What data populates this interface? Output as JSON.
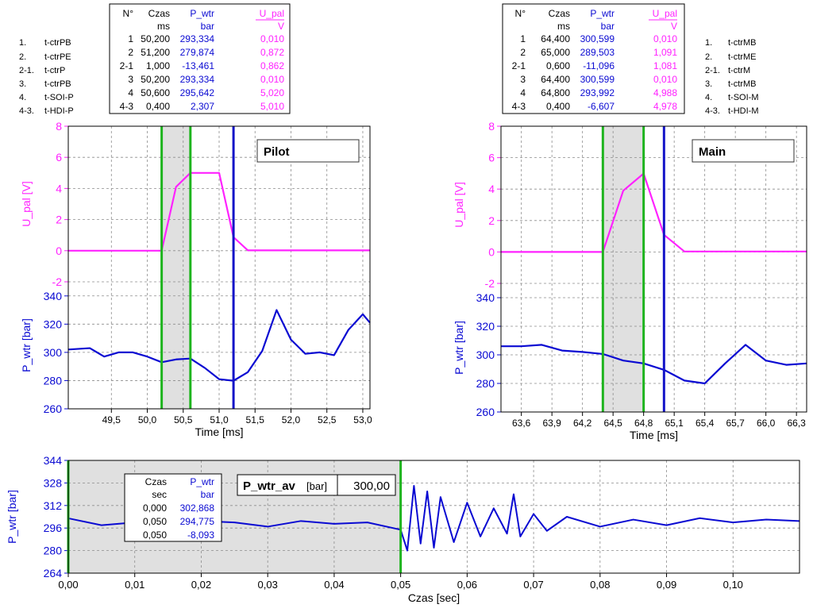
{
  "colors": {
    "pressure": "#0a0ad2",
    "voltage": "#ff22ff",
    "cursor_green": "#1eb41e",
    "cursor_blue": "#1414c8",
    "shade": "#e0e0e0",
    "grid": "#8c8c8c"
  },
  "pilot": {
    "legend": [
      {
        "no": "1.",
        "name": "t-ctrPB"
      },
      {
        "no": "2.",
        "name": "t-ctrPE"
      },
      {
        "no": "2-1.",
        "name": "t-ctrP"
      },
      {
        "no": "3.",
        "name": "t-ctrPB"
      },
      {
        "no": "4.",
        "name": "t-SOI-P"
      },
      {
        "no": "4-3.",
        "name": "t-HDI-P"
      }
    ],
    "table": {
      "headers": [
        "N°",
        "Czas",
        "P_wtr",
        "U_pal"
      ],
      "units": [
        "",
        "ms",
        "bar",
        "V"
      ],
      "rows": [
        [
          "1",
          "50,200",
          "293,334",
          "0,010"
        ],
        [
          "2",
          "51,200",
          "279,874",
          "0,872"
        ],
        [
          "2-1",
          "1,000",
          "-13,461",
          "0,862"
        ],
        [
          "3",
          "50,200",
          "293,334",
          "0,010"
        ],
        [
          "4",
          "50,600",
          "295,642",
          "5,020"
        ],
        [
          "4-3",
          "0,400",
          "2,307",
          "5,010"
        ]
      ]
    },
    "label": "Pilot"
  },
  "main": {
    "legend": [
      {
        "no": "1.",
        "name": "t-ctrMB"
      },
      {
        "no": "2.",
        "name": "t-ctrME"
      },
      {
        "no": "2-1.",
        "name": "t-ctrM"
      },
      {
        "no": "3.",
        "name": "t-ctrMB"
      },
      {
        "no": "4.",
        "name": "t-SOI-M"
      },
      {
        "no": "4-3.",
        "name": "t-HDI-M"
      }
    ],
    "table": {
      "headers": [
        "N°",
        "Czas",
        "P_wtr",
        "U_pal"
      ],
      "units": [
        "",
        "ms",
        "bar",
        "V"
      ],
      "rows": [
        [
          "1",
          "64,400",
          "300,599",
          "0,010"
        ],
        [
          "2",
          "65,000",
          "289,503",
          "1,091"
        ],
        [
          "2-1",
          "0,600",
          "-11,096",
          "1,081"
        ],
        [
          "3",
          "64,400",
          "300,599",
          "0,010"
        ],
        [
          "4",
          "64,800",
          "293,992",
          "4,988"
        ],
        [
          "4-3",
          "0,400",
          "-6,607",
          "4,978"
        ]
      ]
    },
    "label": "Main"
  },
  "bottom": {
    "avg_label": "P_wtr_av",
    "avg_unit": "[bar]",
    "avg_value": "300,00",
    "table": {
      "headers": [
        "Czas",
        "P_wtr"
      ],
      "units": [
        "sec",
        "bar"
      ],
      "rows": [
        [
          "0,000",
          "302,868"
        ],
        [
          "0,050",
          "294,775"
        ],
        [
          "0,050",
          "-8,093"
        ]
      ]
    }
  },
  "chart_data": [
    {
      "id": "pilot",
      "type": "line",
      "xlabel": "Time [ms]",
      "x_ticks": [
        "49,5",
        "50,0",
        "50,5",
        "51,0",
        "51,5",
        "52,0",
        "52,5",
        "53,0"
      ],
      "xlim": [
        48.9,
        53.1
      ],
      "upper": {
        "ylabel": "U_pal [V]",
        "ylim": [
          -2,
          8
        ],
        "y_ticks": [
          "-2",
          "0",
          "2",
          "4",
          "6",
          "8"
        ],
        "series": [
          {
            "x": [
              48.9,
              50.2,
              50.4,
              50.6,
              50.8,
              51.0,
              51.2,
              51.4,
              53.1
            ],
            "y": [
              0,
              0,
              4.1,
              5.0,
              5.0,
              5.0,
              0.87,
              0.02,
              0.02
            ]
          }
        ]
      },
      "lower": {
        "ylabel": "P_wtr [bar]",
        "ylim": [
          260,
          350
        ],
        "y_ticks": [
          "260",
          "280",
          "300",
          "320",
          "340"
        ],
        "series": [
          {
            "x": [
              48.9,
              49.2,
              49.4,
              49.6,
              49.8,
              50.0,
              50.2,
              50.4,
              50.6,
              50.8,
              51.0,
              51.2,
              51.4,
              51.6,
              51.8,
              52.0,
              52.2,
              52.4,
              52.6,
              52.8,
              53.0,
              53.1
            ],
            "y": [
              302,
              303,
              297,
              300,
              300,
              297,
              293,
              295,
              295.6,
              289,
              281,
              279.9,
              286,
              301,
              330,
              309,
              299,
              300,
              298,
              316,
              327,
              321
            ]
          }
        ]
      },
      "cursors": [
        {
          "x": 50.2,
          "color": "green"
        },
        {
          "x": 50.6,
          "color": "green"
        },
        {
          "x": 51.2,
          "color": "blue"
        }
      ],
      "shade": [
        50.2,
        50.6
      ],
      "grid": true
    },
    {
      "id": "main",
      "type": "line",
      "xlabel": "Time [ms]",
      "x_ticks": [
        "63,6",
        "63,9",
        "64,2",
        "64,5",
        "64,8",
        "65,1",
        "65,4",
        "65,7",
        "66,0",
        "66,3"
      ],
      "xlim": [
        63.4,
        66.4
      ],
      "upper": {
        "ylabel": "U_pal [V]",
        "ylim": [
          -2,
          8
        ],
        "y_ticks": [
          "-2",
          "0",
          "2",
          "4",
          "6",
          "8"
        ],
        "series": [
          {
            "x": [
              63.4,
              64.4,
              64.6,
              64.8,
              65.0,
              65.2,
              66.4
            ],
            "y": [
              0,
              0,
              3.9,
              4.99,
              1.09,
              0.03,
              0.03
            ]
          }
        ]
      },
      "lower": {
        "ylabel": "P_wtr [bar]",
        "ylim": [
          260,
          350
        ],
        "y_ticks": [
          "260",
          "280",
          "300",
          "320",
          "340"
        ],
        "series": [
          {
            "x": [
              63.4,
              63.6,
              63.8,
              64.0,
              64.2,
              64.4,
              64.6,
              64.8,
              65.0,
              65.2,
              65.4,
              65.6,
              65.8,
              66.0,
              66.2,
              66.4
            ],
            "y": [
              306,
              306,
              307,
              303,
              302,
              300.6,
              296,
              294,
              289.5,
              282,
              280,
              294,
              307,
              296,
              293,
              294
            ]
          }
        ]
      },
      "cursors": [
        {
          "x": 64.4,
          "color": "green"
        },
        {
          "x": 64.8,
          "color": "green"
        },
        {
          "x": 65.0,
          "color": "blue"
        }
      ],
      "shade": [
        64.4,
        64.8
      ],
      "grid": true
    },
    {
      "id": "bottom",
      "type": "line",
      "xlabel": "Czas [sec]",
      "ylabel": "P_wtr [bar]",
      "x_ticks": [
        "0,00",
        "0,01",
        "0,02",
        "0,03",
        "0,04",
        "0,05",
        "0,06",
        "0,07",
        "0,08",
        "0,09",
        "0,10"
      ],
      "y_ticks": [
        "264",
        "280",
        "296",
        "312",
        "328",
        "344"
      ],
      "xlim": [
        0,
        0.11
      ],
      "ylim": [
        264,
        344
      ],
      "series": [
        {
          "x": [
            0.0,
            0.005,
            0.01,
            0.015,
            0.02,
            0.025,
            0.03,
            0.035,
            0.04,
            0.045,
            0.05,
            0.051,
            0.052,
            0.053,
            0.054,
            0.055,
            0.056,
            0.058,
            0.06,
            0.062,
            0.064,
            0.066,
            0.067,
            0.068,
            0.07,
            0.072,
            0.075,
            0.08,
            0.085,
            0.09,
            0.095,
            0.1,
            0.105,
            0.11
          ],
          "y": [
            302.9,
            298,
            300,
            299,
            301,
            300,
            297,
            301,
            299,
            300,
            294.8,
            280,
            326,
            285,
            322,
            282,
            318,
            286,
            314,
            290,
            310,
            292,
            320,
            290,
            306,
            294,
            304,
            297,
            302,
            298,
            303,
            300,
            302,
            301
          ]
        }
      ],
      "cursors": [
        {
          "x": 0.0,
          "color": "green"
        },
        {
          "x": 0.05,
          "color": "green"
        }
      ],
      "shade": [
        0.0,
        0.05
      ],
      "grid": true
    }
  ]
}
